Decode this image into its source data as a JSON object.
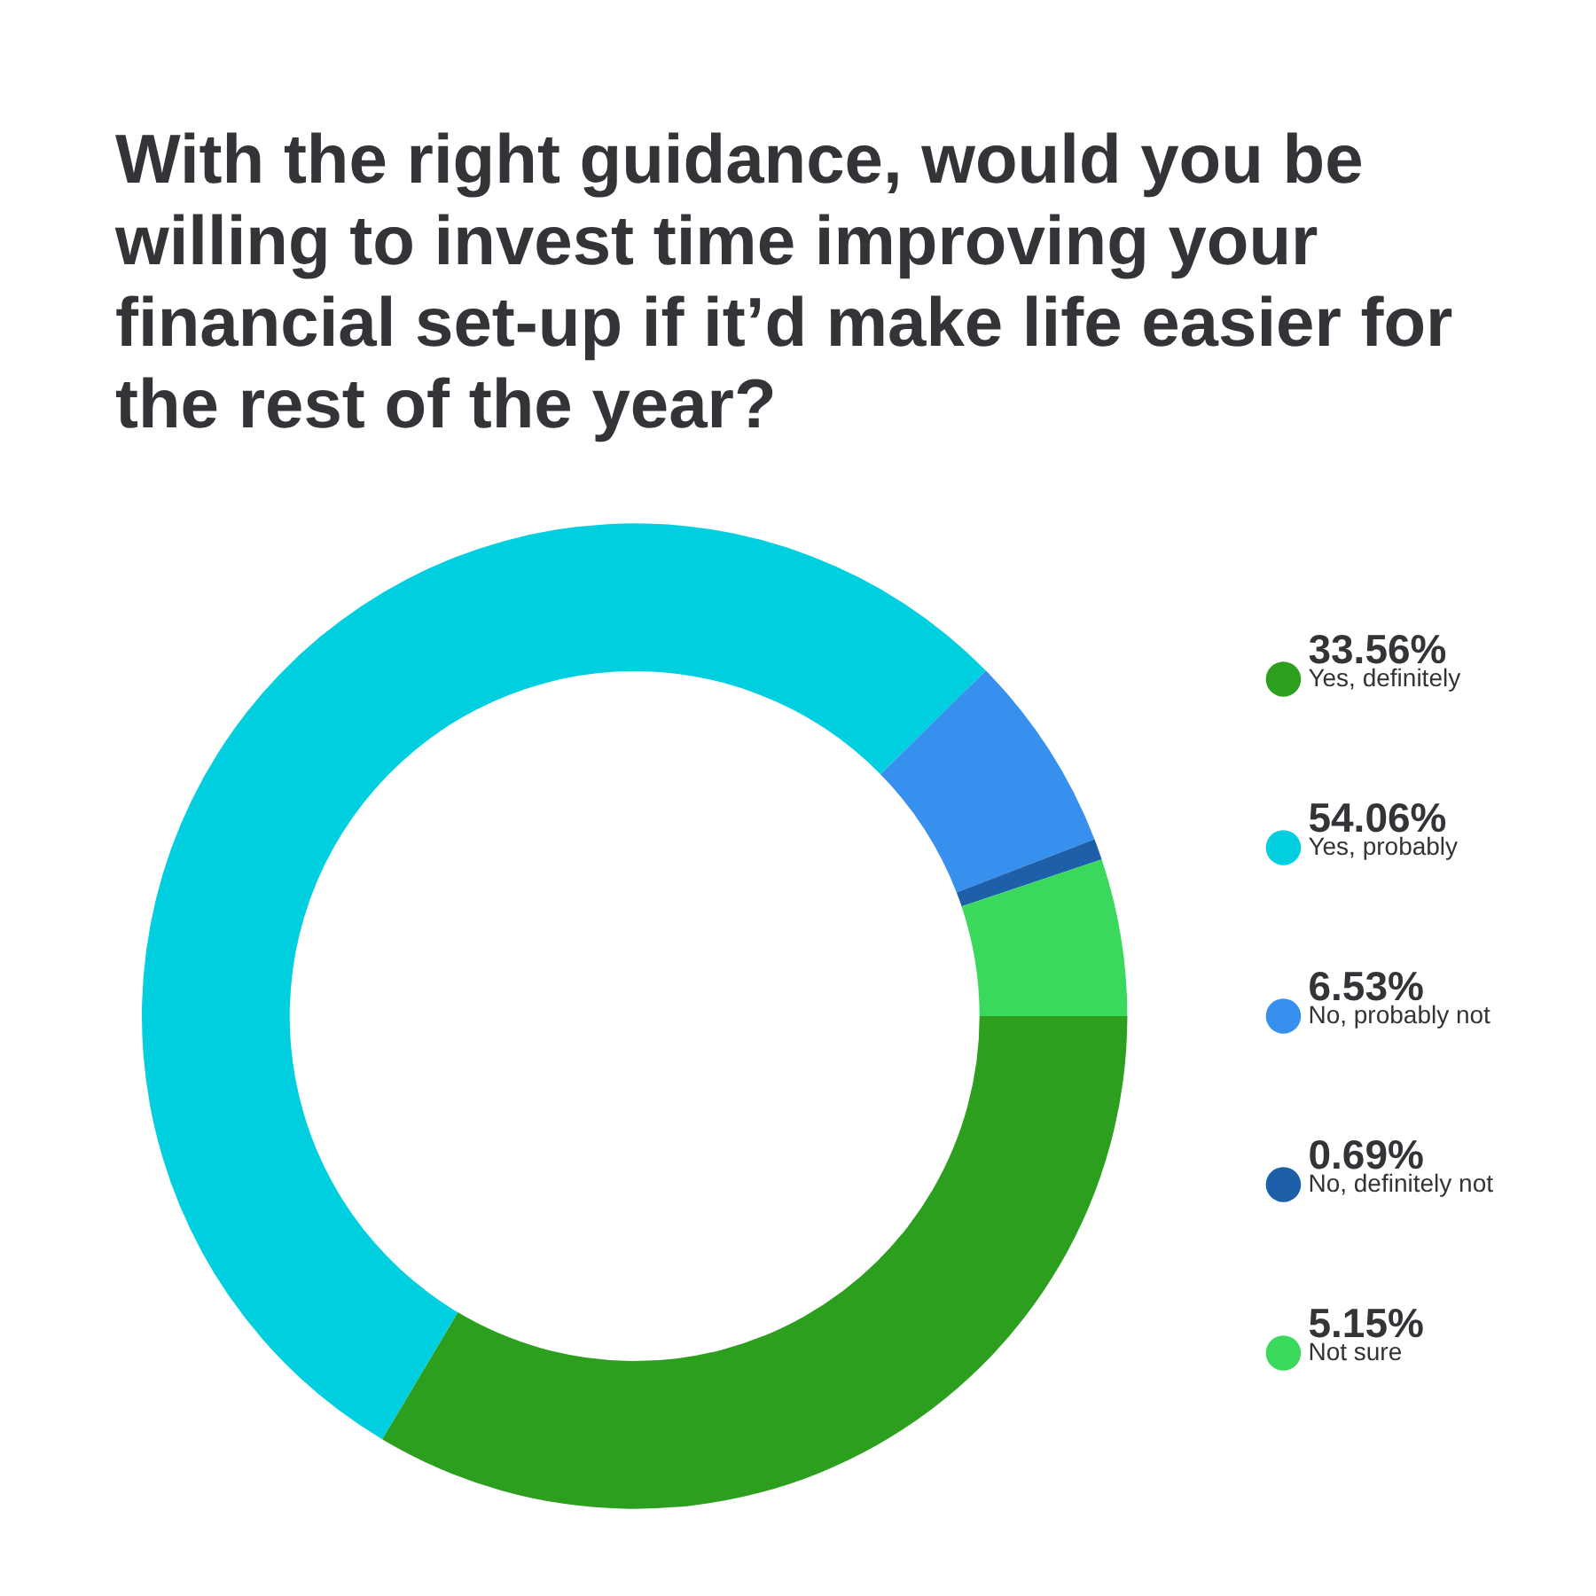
{
  "chart_data": {
    "type": "donut",
    "title": "With the right guidance, would you be willing to invest time improving your financial set-up if it’d make life easier for the rest of the year?",
    "categories": [
      "Yes, definitely",
      "Yes, probably",
      "No, probably not",
      "No, definitely not",
      "Not sure"
    ],
    "values": [
      33.56,
      54.06,
      6.53,
      0.69,
      5.15
    ],
    "value_labels": [
      "33.56%",
      "54.06%",
      "6.53%",
      "0.69%",
      "5.15%"
    ],
    "colors": [
      "#2ca01e",
      "#00cfe0",
      "#3790ee",
      "#1d5fa8",
      "#3ad95e"
    ],
    "legend": "right"
  }
}
